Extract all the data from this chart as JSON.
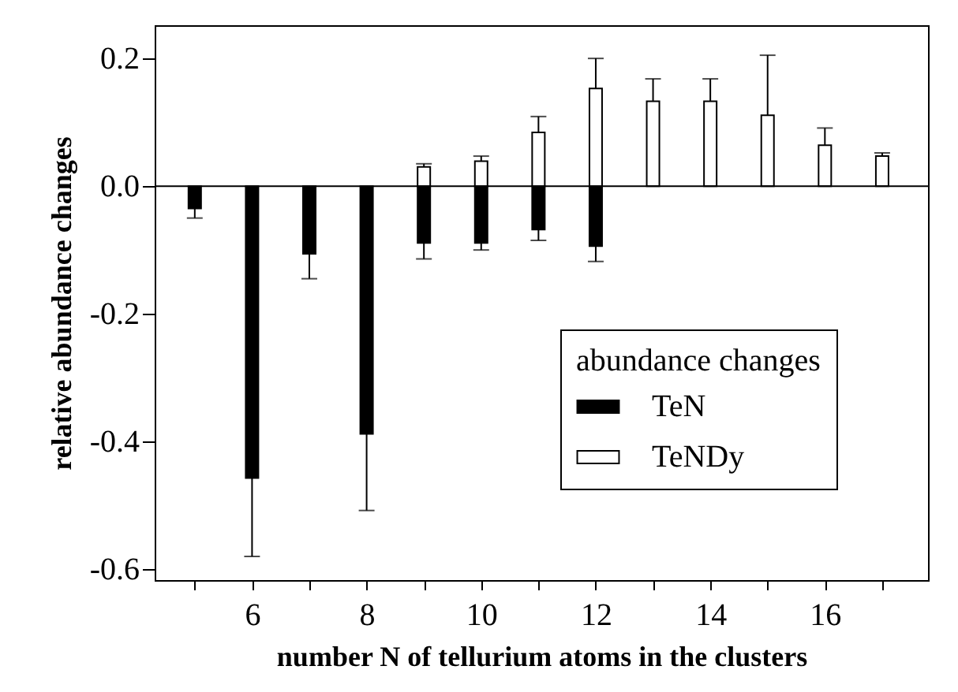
{
  "chart_data": {
    "type": "bar",
    "xlabel": "number N of tellurium atoms in the clusters",
    "ylabel": "relative abundance changes",
    "legend_title": "abundance changes",
    "legend": "bottom right",
    "grid": false,
    "xlim": [
      4.3,
      17.8
    ],
    "xticks": [
      {
        "value": 5,
        "label": null
      },
      6,
      {
        "value": 7,
        "label": null
      },
      8,
      {
        "value": 9,
        "label": null
      },
      10,
      {
        "value": 11,
        "label": null
      },
      12,
      {
        "value": 13,
        "label": null
      },
      14,
      {
        "value": 15,
        "label": null
      },
      16,
      {
        "value": 17,
        "label": null
      }
    ],
    "ylim": [
      -0.617,
      0.252
    ],
    "yticks": [
      -0.6,
      -0.4,
      -0.2,
      {
        "value": 0,
        "label": "0.0"
      },
      0.2
    ],
    "ref_lines": [
      {
        "axis": "y",
        "value": 0,
        "color": "#000000"
      }
    ],
    "series": [
      {
        "name": "TeN",
        "color": "#000000",
        "x": [
          5,
          6,
          7,
          8,
          9,
          10,
          11,
          12
        ],
        "values": [
          -0.035,
          -0.457,
          -0.106,
          -0.388,
          -0.089,
          -0.089,
          -0.068,
          -0.094
        ],
        "errors": [
          [
            -0.05,
            -0.035
          ],
          [
            -0.58,
            -0.457
          ],
          [
            -0.145,
            -0.106
          ],
          [
            -0.508,
            -0.388
          ],
          [
            -0.114,
            -0.089
          ],
          [
            -0.1,
            -0.089
          ],
          [
            -0.085,
            -0.068
          ],
          [
            -0.118,
            -0.094
          ]
        ]
      },
      {
        "name": "TeNDy",
        "color": "#ffffff",
        "x": [
          9,
          10,
          11,
          12,
          13,
          14,
          15,
          16,
          17
        ],
        "values": [
          0.03,
          0.039,
          0.084,
          0.153,
          0.133,
          0.133,
          0.111,
          0.064,
          0.047
        ],
        "errors": [
          [
            0.03,
            0.035
          ],
          [
            0.039,
            0.047
          ],
          [
            0.084,
            0.109
          ],
          [
            0.153,
            0.2
          ],
          [
            0.133,
            0.168
          ],
          [
            0.133,
            0.168
          ],
          [
            0.111,
            0.205
          ],
          [
            0.064,
            0.091
          ],
          [
            0.047,
            0.052
          ]
        ]
      }
    ]
  }
}
